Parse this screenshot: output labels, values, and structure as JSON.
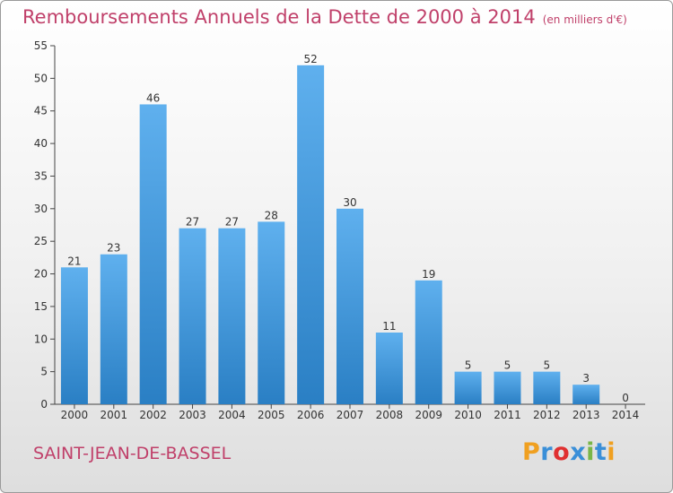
{
  "header": {
    "title": "Remboursements Annuels de la Dette de 2000 à 2014",
    "subtitle": "(en milliers d'€)"
  },
  "footer": {
    "commune": "SAINT-JEAN-DE-BASSEL",
    "logo_letters": [
      "P",
      "r",
      "o",
      "x",
      "i",
      "t",
      "i"
    ]
  },
  "colors": {
    "bar_top": "#5fb0ee",
    "bar_bottom": "#2a7fc4",
    "title": "#c0406a"
  },
  "chart_data": {
    "type": "bar",
    "title": "Remboursements Annuels de la Dette de 2000 à 2014",
    "subtitle": "(en milliers d'€)",
    "categories": [
      "2000",
      "2001",
      "2002",
      "2003",
      "2004",
      "2005",
      "2006",
      "2007",
      "2008",
      "2009",
      "2010",
      "2011",
      "2012",
      "2013",
      "2014"
    ],
    "values": [
      21,
      23,
      46,
      27,
      27,
      28,
      52,
      30,
      11,
      19,
      5,
      5,
      5,
      3,
      0
    ],
    "ylim": [
      0,
      55
    ],
    "yticks": [
      0,
      5,
      10,
      15,
      20,
      25,
      30,
      35,
      40,
      45,
      50,
      55
    ],
    "grid": false,
    "xlabel": "",
    "ylabel": ""
  }
}
